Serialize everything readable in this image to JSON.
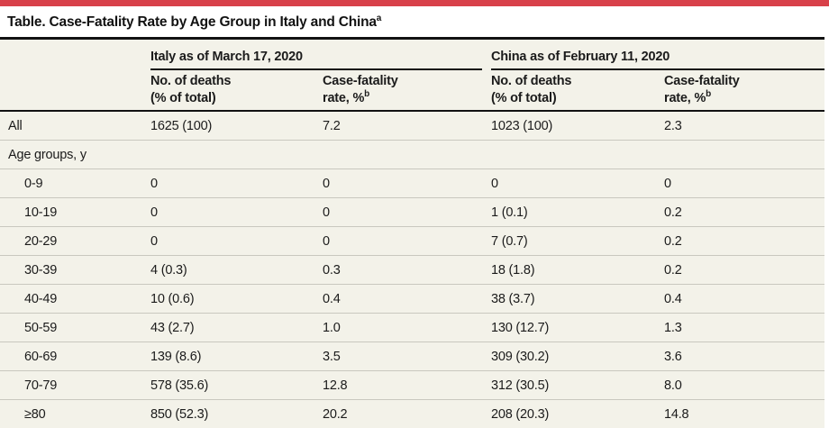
{
  "colors": {
    "accent_red": "#d8414a",
    "table_background": "#f3f2e9",
    "rule_black": "#121212",
    "row_divider": "#c9c8bf"
  },
  "title": {
    "text": "Table. Case-Fatality Rate by Age Group in Italy and China",
    "footnote_mark": "a"
  },
  "header": {
    "groups": [
      {
        "label": "Italy as of March 17, 2020"
      },
      {
        "label": "China as of February 11, 2020"
      }
    ],
    "columns": [
      {
        "line1": "No. of deaths",
        "line2": "(% of total)",
        "footnote_mark": ""
      },
      {
        "line1": "Case-fatality",
        "line2": "rate, %",
        "footnote_mark": "b"
      },
      {
        "line1": "No. of deaths",
        "line2": "(% of total)",
        "footnote_mark": ""
      },
      {
        "line1": "Case-fatality",
        "line2": "rate, %",
        "footnote_mark": "b"
      }
    ]
  },
  "rows": [
    {
      "label": "All",
      "values": [
        "1625 (100)",
        "7.2",
        "1023 (100)",
        "2.3"
      ]
    },
    {
      "label": "Age groups, y",
      "values": [
        "",
        "",
        "",
        ""
      ]
    },
    {
      "label": "0-9",
      "values": [
        "0",
        "0",
        "0",
        "0"
      ]
    },
    {
      "label": "10-19",
      "values": [
        "0",
        "0",
        "1 (0.1)",
        "0.2"
      ]
    },
    {
      "label": "20-29",
      "values": [
        "0",
        "0",
        "7 (0.7)",
        "0.2"
      ]
    },
    {
      "label": "30-39",
      "values": [
        "4 (0.3)",
        "0.3",
        "18 (1.8)",
        "0.2"
      ]
    },
    {
      "label": "40-49",
      "values": [
        "10 (0.6)",
        "0.4",
        "38 (3.7)",
        "0.4"
      ]
    },
    {
      "label": "50-59",
      "values": [
        "43 (2.7)",
        "1.0",
        "130 (12.7)",
        "1.3"
      ]
    },
    {
      "label": "60-69",
      "values": [
        "139 (8.6)",
        "3.5",
        "309 (30.2)",
        "3.6"
      ]
    },
    {
      "label": "70-79",
      "values": [
        "578 (35.6)",
        "12.8",
        "312 (30.5)",
        "8.0"
      ]
    },
    {
      "label": "≥80",
      "values": [
        "850 (52.3)",
        "20.2",
        "208 (20.3)",
        "14.8"
      ]
    }
  ]
}
